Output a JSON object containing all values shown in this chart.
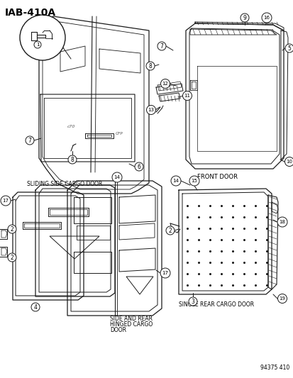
{
  "title": "IAB-410A",
  "bg_color": "#ffffff",
  "part_number": "94375 410",
  "line_color": "#1a1a1a",
  "labels": {
    "sliding_side": "SLIDING SIDE CARGO DOOR",
    "front_door": "FRONT DOOR",
    "side_rear_hinged1": "SIDE AND REAR",
    "side_rear_hinged2": "HINGED CARGO",
    "side_rear_hinged3": "DOOR",
    "single_rear": "SINGLE REAR CARGO DOOR"
  }
}
